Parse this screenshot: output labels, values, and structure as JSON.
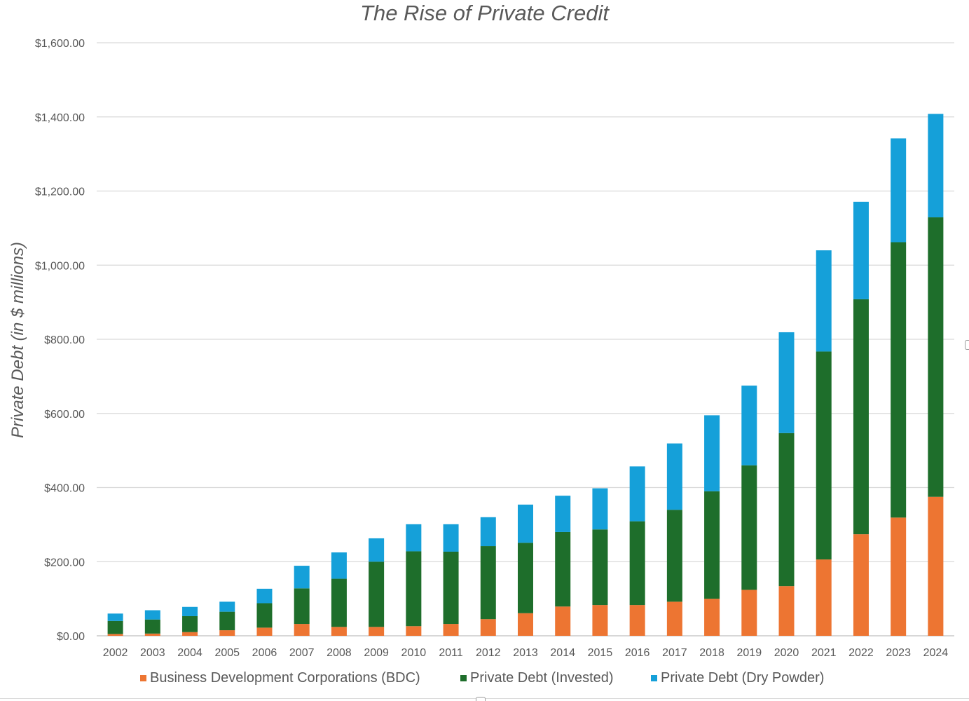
{
  "chart_data": {
    "type": "bar",
    "stacked": true,
    "title": "The Rise of Private Credit",
    "xlabel": "",
    "ylabel": "Private Debt (in $ millions)",
    "ylim": [
      0,
      1600
    ],
    "yticks": [
      0,
      200,
      400,
      600,
      800,
      1000,
      1200,
      1400,
      1600
    ],
    "ytick_labels": [
      "$0.00",
      "$200.00",
      "$400.00",
      "$600.00",
      "$800.00",
      "$1,000.00",
      "$1,200.00",
      "$1,400.00",
      "$1,600.00"
    ],
    "grid": true,
    "legend_position": "bottom",
    "categories": [
      "2002",
      "2003",
      "2004",
      "2005",
      "2006",
      "2007",
      "2008",
      "2009",
      "2010",
      "2011",
      "2012",
      "2013",
      "2014",
      "2015",
      "2016",
      "2017",
      "2018",
      "2019",
      "2020",
      "2021",
      "2022",
      "2023",
      "2024"
    ],
    "series": [
      {
        "name": "Business Development Corporations (BDC)",
        "color": "#ed7532",
        "values": [
          5,
          6,
          10,
          15,
          22,
          32,
          24,
          24,
          26,
          32,
          45,
          61,
          79,
          83,
          83,
          92,
          100,
          124,
          134,
          206,
          274,
          319,
          375
        ]
      },
      {
        "name": "Private Debt (Invested)",
        "color": "#1e6e2b",
        "values": [
          35,
          38,
          43,
          50,
          66,
          96,
          130,
          176,
          202,
          195,
          197,
          190,
          201,
          204,
          226,
          248,
          290,
          336,
          413,
          561,
          634,
          743,
          754
        ]
      },
      {
        "name": "Private Debt (Dry Powder)",
        "color": "#15a0d9",
        "values": [
          20,
          25,
          25,
          27,
          39,
          61,
          71,
          63,
          73,
          74,
          78,
          103,
          98,
          111,
          148,
          179,
          205,
          215,
          272,
          273,
          263,
          280,
          279
        ]
      }
    ]
  }
}
